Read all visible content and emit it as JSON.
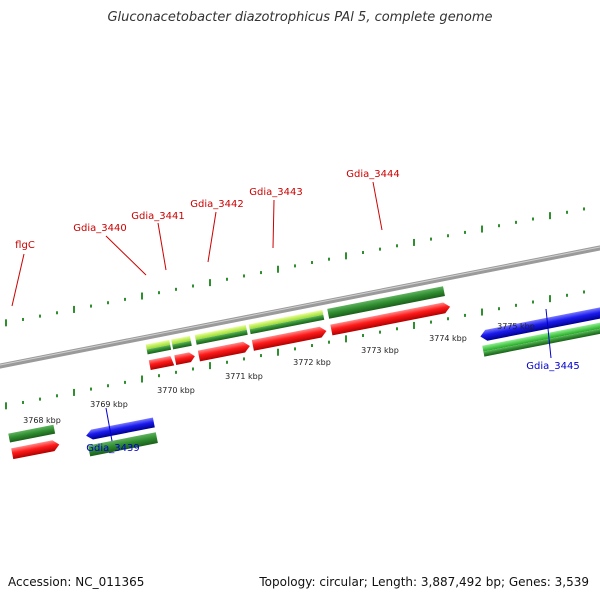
{
  "title": "Gluconacetobacter diazotrophicus PAl 5, complete genome",
  "footer": {
    "accession": "Accession: NC_011365",
    "summary": "Topology: circular; Length: 3,887,492 bp; Genes: 3,539"
  },
  "scale": {
    "ticks": [
      "3768 kbp",
      "3769 kbp",
      "3770 kbp",
      "3771 kbp",
      "3772 kbp",
      "3773 kbp",
      "3774 kbp",
      "3775 kbp"
    ]
  },
  "genes": [
    {
      "label": "flgC",
      "color": "#cc0000"
    },
    {
      "label": "Gdia_3440",
      "color": "#cc0000"
    },
    {
      "label": "Gdia_3441",
      "color": "#cc0000"
    },
    {
      "label": "Gdia_3442",
      "color": "#cc0000"
    },
    {
      "label": "Gdia_3443",
      "color": "#cc0000"
    },
    {
      "label": "Gdia_3444",
      "color": "#cc0000"
    },
    {
      "label": "Gdia_3439",
      "color": "#0000cc"
    },
    {
      "label": "Gdia_3445",
      "color": "#0000cc"
    }
  ],
  "colors": {
    "backbone": "#8c8c8c",
    "cds_forward": "#ff0000",
    "gene_dark": "#2e8b2e",
    "gene_light": "#9bdc2c",
    "cds_reverse": "#1a1aee",
    "gene_reverse": "#33bb33",
    "tick": "#2f8f2f"
  }
}
